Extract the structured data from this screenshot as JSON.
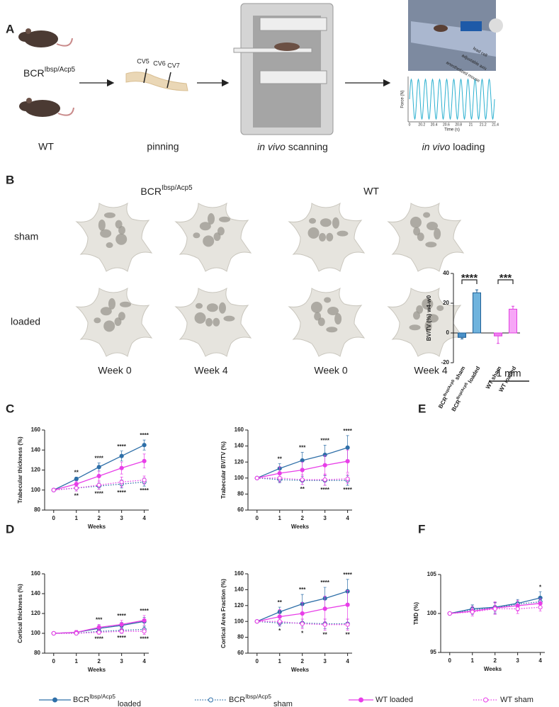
{
  "figure": {
    "panel_labels": [
      "A",
      "B",
      "C",
      "D",
      "E",
      "F"
    ],
    "panel_a": {
      "mouse_label": {
        "base": "BCR",
        "sup": "Ibsp/Acp5"
      },
      "wt": "WT",
      "vertebrae": [
        "CV5",
        "CV6",
        "CV7"
      ],
      "steps": [
        "pinning",
        {
          "italic": "in vivo",
          "rest": " scanning"
        },
        {
          "italic": "in vivo",
          "rest": " loading"
        }
      ],
      "photo_labels": [
        "load cell",
        "adjustable axis",
        "anesthetized mouse"
      ],
      "inset": {
        "ylabel": "Force (N)",
        "xlabel": "Time (s)",
        "xticks": [
          "0",
          "20.2",
          "20.4",
          "20.6",
          "20.8",
          "21",
          "21.2",
          "21.4"
        ]
      }
    },
    "panel_b": {
      "groups": [
        {
          "base": "BCR",
          "sup": "Ibsp/Acp5"
        },
        "WT"
      ],
      "rows": [
        "sham",
        "loaded"
      ],
      "weeks": [
        "Week 0",
        "Week 4",
        "Week 0",
        "Week 4"
      ],
      "scale": "1 mm"
    },
    "legend": [
      {
        "base": "BCR",
        "sup": "Ibsp/Acp5",
        "sub": " loaded",
        "color": "#2e6fa8",
        "line_style": "solid",
        "marker": "filled"
      },
      {
        "base": "BCR",
        "sup": "Ibsp/Acp5",
        "sub": " sham",
        "color": "#2e6fa8",
        "line_style": "dotted",
        "marker": "open"
      },
      {
        "base": "WT loaded",
        "color": "#e83ee8",
        "line_style": "solid",
        "marker": "filled"
      },
      {
        "base": "WT sham",
        "color": "#e83ee8",
        "line_style": "dotted",
        "marker": "open"
      }
    ]
  },
  "chart_data": [
    {
      "type": "line",
      "ylabel": "Trabecular thickness (%)",
      "xlabel": "Weeks",
      "x": [
        0,
        1,
        2,
        3,
        4
      ],
      "xlim": [
        -0.4,
        4.2
      ],
      "xticks": [
        0,
        1,
        2,
        3,
        4
      ],
      "ylim": [
        80,
        160
      ],
      "yticks": [
        80,
        100,
        120,
        140,
        160
      ],
      "series": [
        {
          "color": "#2e6fa8",
          "line_style": "solid",
          "marker": "filled",
          "values": [
            100,
            111,
            123,
            134,
            145
          ],
          "errors": [
            0,
            2,
            4,
            5,
            5
          ]
        },
        {
          "color": "#2e6fa8",
          "line_style": "dotted",
          "marker": "open",
          "values": [
            100,
            102,
            104,
            106,
            108
          ],
          "errors": [
            0,
            3,
            3,
            4,
            4
          ]
        },
        {
          "color": "#e83ee8",
          "line_style": "solid",
          "marker": "filled",
          "values": [
            100,
            106,
            114,
            122,
            129
          ],
          "errors": [
            0,
            3,
            5,
            6,
            7
          ]
        },
        {
          "color": "#e83ee8",
          "line_style": "dotted",
          "marker": "open",
          "values": [
            100,
            102,
            105,
            108,
            110
          ],
          "errors": [
            0,
            3,
            4,
            5,
            4
          ]
        }
      ],
      "annotations_top": [
        null,
        "**",
        "****",
        "****",
        "****"
      ],
      "annotations_bottom": [
        null,
        "**",
        "****",
        "****",
        "****"
      ]
    },
    {
      "type": "line",
      "ylabel": "Trabecular BV/TV (%)",
      "xlabel": "Weeks",
      "x": [
        0,
        1,
        2,
        3,
        4
      ],
      "xlim": [
        -0.4,
        4.2
      ],
      "xticks": [
        0,
        1,
        2,
        3,
        4
      ],
      "ylim": [
        60,
        160
      ],
      "yticks": [
        60,
        80,
        100,
        120,
        140,
        160
      ],
      "series": [
        {
          "color": "#2e6fa8",
          "line_style": "solid",
          "marker": "filled",
          "values": [
            100,
            112,
            122,
            129,
            138
          ],
          "errors": [
            0,
            6,
            10,
            12,
            15
          ]
        },
        {
          "color": "#2e6fa8",
          "line_style": "dotted",
          "marker": "open",
          "values": [
            100,
            98,
            97,
            97,
            97
          ],
          "errors": [
            0,
            4,
            5,
            6,
            6
          ]
        },
        {
          "color": "#e83ee8",
          "line_style": "solid",
          "marker": "filled",
          "values": [
            100,
            106,
            110,
            116,
            121
          ],
          "errors": [
            0,
            8,
            10,
            12,
            14
          ]
        },
        {
          "color": "#e83ee8",
          "line_style": "dotted",
          "marker": "open",
          "values": [
            100,
            100,
            98,
            98,
            99
          ],
          "errors": [
            0,
            5,
            6,
            7,
            6
          ]
        }
      ],
      "annotations_top": [
        null,
        "**",
        "***",
        "****",
        "****"
      ],
      "annotations_bottom": [
        null,
        null,
        "**",
        "****",
        "****"
      ]
    },
    {
      "type": "line",
      "ylabel": "Cortical thickness (%)",
      "xlabel": "Weeks",
      "x": [
        0,
        1,
        2,
        3,
        4
      ],
      "xlim": [
        -0.4,
        4.2
      ],
      "xticks": [
        0,
        1,
        2,
        3,
        4
      ],
      "ylim": [
        80,
        160
      ],
      "yticks": [
        80,
        100,
        120,
        140,
        160
      ],
      "series": [
        {
          "color": "#2e6fa8",
          "line_style": "solid",
          "marker": "filled",
          "values": [
            100,
            101,
            105,
            108,
            112
          ],
          "errors": [
            0,
            2,
            3,
            3,
            4
          ]
        },
        {
          "color": "#2e6fa8",
          "line_style": "dotted",
          "marker": "open",
          "values": [
            100,
            100,
            102,
            103,
            104
          ],
          "errors": [
            0,
            1,
            2,
            3,
            3
          ]
        },
        {
          "color": "#e83ee8",
          "line_style": "solid",
          "marker": "filled",
          "values": [
            100,
            101,
            106,
            109,
            113
          ],
          "errors": [
            0,
            2,
            3,
            4,
            5
          ]
        },
        {
          "color": "#e83ee8",
          "line_style": "dotted",
          "marker": "open",
          "values": [
            100,
            100,
            101,
            102,
            102
          ],
          "errors": [
            0,
            1,
            2,
            2,
            3
          ]
        }
      ],
      "annotations_top": [
        null,
        null,
        "***",
        "****",
        "****"
      ],
      "annotations_bottom": [
        null,
        null,
        "****",
        "****",
        "****"
      ]
    },
    {
      "type": "line",
      "ylabel": "Cortical Area Fraction (%)",
      "xlabel": "Weeks",
      "x": [
        0,
        1,
        2,
        3,
        4
      ],
      "xlim": [
        -0.4,
        4.2
      ],
      "xticks": [
        0,
        1,
        2,
        3,
        4
      ],
      "ylim": [
        60,
        160
      ],
      "yticks": [
        60,
        80,
        100,
        120,
        140,
        160
      ],
      "series": [
        {
          "color": "#2e6fa8",
          "line_style": "solid",
          "marker": "filled",
          "values": [
            100,
            112,
            122,
            129,
            138
          ],
          "errors": [
            0,
            6,
            12,
            14,
            15
          ]
        },
        {
          "color": "#2e6fa8",
          "line_style": "dotted",
          "marker": "open",
          "values": [
            100,
            98,
            98,
            97,
            97
          ],
          "errors": [
            0,
            4,
            5,
            6,
            6
          ]
        },
        {
          "color": "#e83ee8",
          "line_style": "solid",
          "marker": "filled",
          "values": [
            100,
            106,
            110,
            116,
            121
          ],
          "errors": [
            0,
            9,
            14,
            16,
            18
          ]
        },
        {
          "color": "#e83ee8",
          "line_style": "dotted",
          "marker": "open",
          "values": [
            100,
            100,
            97,
            96,
            96
          ],
          "errors": [
            0,
            5,
            6,
            7,
            7
          ]
        }
      ],
      "annotations_top": [
        null,
        "**",
        "***",
        "****",
        "****"
      ],
      "annotations_bottom": [
        null,
        "*",
        "*",
        "**",
        "**"
      ]
    },
    {
      "type": "bar",
      "ylabel": "BV/TV (%) w4-w0",
      "ylim": [
        -20,
        40
      ],
      "yticks": [
        -20,
        0,
        20,
        40
      ],
      "categories": [
        {
          "base": "BCR",
          "sup": "Ibsp/Acp5",
          "rest": " sham"
        },
        {
          "base": "BCR",
          "sup": "Ibsp/Acp5",
          "rest": " loaded"
        },
        {
          "base": "WT sham"
        },
        {
          "base": "WT loaded"
        }
      ],
      "values": [
        -3,
        27,
        -2,
        16
      ],
      "errors": [
        1,
        2,
        5,
        2
      ],
      "colors": [
        "#4a90c8",
        "#6fb3dd",
        "#f07ef0",
        "#f7a6f7"
      ],
      "edge_colors": [
        "#1f5f95",
        "#1f5f95",
        "#e040e0",
        "#e040e0"
      ],
      "comparisons": [
        {
          "pair": [
            0,
            1
          ],
          "label": "****"
        },
        {
          "pair": [
            2,
            3
          ],
          "label": "***"
        }
      ]
    },
    {
      "type": "line",
      "ylabel": "TMD (%)",
      "xlabel": "Weeks",
      "x": [
        0,
        1,
        2,
        3,
        4
      ],
      "xlim": [
        -0.4,
        4.2
      ],
      "xticks": [
        0,
        1,
        2,
        3,
        4
      ],
      "ylim": [
        95,
        105
      ],
      "yticks": [
        95,
        100,
        105
      ],
      "series": [
        {
          "color": "#2e6fa8",
          "line_style": "solid",
          "marker": "filled",
          "values": [
            100,
            100.6,
            100.8,
            101.3,
            102
          ],
          "errors": [
            0,
            0.5,
            0.6,
            0.5,
            0.8
          ]
        },
        {
          "color": "#2e6fa8",
          "line_style": "dotted",
          "marker": "open",
          "values": [
            100,
            100.5,
            100.7,
            101.2,
            101.5
          ],
          "errors": [
            0,
            0.6,
            0.7,
            0.5,
            0.6
          ]
        },
        {
          "color": "#e83ee8",
          "line_style": "solid",
          "marker": "filled",
          "values": [
            100,
            100.3,
            100.7,
            101,
            101.3
          ],
          "errors": [
            0,
            0.6,
            0.8,
            0.7,
            0.6
          ]
        },
        {
          "color": "#e83ee8",
          "line_style": "dotted",
          "marker": "open",
          "values": [
            100,
            100.2,
            100.6,
            100.6,
            100.8
          ],
          "errors": [
            0,
            0.5,
            0.7,
            0.6,
            0.5
          ]
        }
      ],
      "annotations_top": [
        null,
        null,
        null,
        null,
        "*"
      ],
      "annotations_bottom": [
        null,
        null,
        null,
        null,
        null
      ]
    }
  ]
}
